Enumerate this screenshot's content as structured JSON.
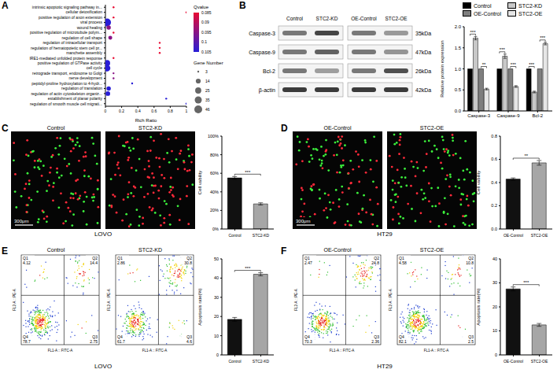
{
  "chart_data": [
    {
      "panel": "A",
      "type": "scatter",
      "x_label": "Rich Ratio",
      "categories": [
        "intrinsic apoptotic signaling pathway in...",
        "cellular detoxification",
        "positive regulation of axon extension",
        "viral process",
        "wound healing",
        "positive regulation of microtubule polym...",
        "regulation of cell shape",
        "regulation of intracellular transport",
        "regulation of hematopoietic stem cell pr...",
        "manchette assembly",
        "IRE1-mediated unfolded protein response",
        "positive regulation of GTPase activity",
        "cell cycle",
        "retrograde transport, endosome to Golgi",
        "nerve development",
        "peptidyl-proline hydroxylation to 4-hydr...",
        "regulation of translation",
        "regulation of actin cytoskeleton organiz...",
        "establishment of planar polarity",
        "regulation of smooth muscle cell migrati..."
      ],
      "x": [
        0.1,
        1,
        0.1,
        0.02,
        0.04,
        0.1,
        0.06,
        0.67,
        0.67,
        0.67,
        0.1,
        0.02,
        0.02,
        0.1,
        0.1,
        0.33,
        0.04,
        0.03,
        0.75,
        1
      ],
      "qvalue": [
        0.085,
        0.085,
        0.085,
        0.105,
        0.095,
        0.085,
        0.095,
        0.085,
        0.085,
        0.085,
        0.085,
        0.105,
        0.105,
        0.095,
        0.095,
        0.105,
        0.105,
        0.105,
        0.105,
        0.105
      ],
      "gene_number": [
        3,
        3,
        3,
        46,
        10,
        3,
        8,
        3,
        3,
        3,
        3,
        25,
        30,
        3,
        3,
        3,
        10,
        12,
        3,
        3
      ],
      "xlim": [
        0,
        1
      ],
      "xticks": [
        0,
        0.2,
        0.4,
        0.6,
        0.8,
        1
      ],
      "color_bar": {
        "title": "Qvalue",
        "range": [
          0.085,
          0.105
        ],
        "ticks": [
          0.085,
          0.09,
          0.095,
          0.1,
          0.105
        ]
      },
      "size_legend": {
        "title": "Gene Number",
        "values": [
          3,
          14,
          25,
          35,
          46
        ]
      }
    },
    {
      "panel": "B",
      "type": "bar",
      "y_label": "Relative protein expression",
      "categories": [
        "Caspase-3",
        "Caspase-9",
        "Bcl-2"
      ],
      "series": [
        {
          "name": "Control",
          "color": "#000000",
          "values": [
            1,
            1,
            1
          ],
          "errors": [
            0,
            0,
            0
          ]
        },
        {
          "name": "STC2-KD",
          "color": "#c8c8c8",
          "values": [
            1.73,
            1.3,
            0.45
          ],
          "errors": [
            0.04,
            0.05,
            0.02
          ]
        },
        {
          "name": "OE-Control",
          "color": "#7f7f7f",
          "values": [
            1,
            1,
            1
          ],
          "errors": [
            0,
            0,
            0
          ]
        },
        {
          "name": "STC2-OE",
          "color": "#e6e6e6",
          "values": [
            0.52,
            0.58,
            1.6
          ],
          "errors": [
            0.02,
            0.02,
            0.03
          ]
        }
      ],
      "ylim": [
        0,
        2
      ],
      "yticks": [
        {
          "value": 0,
          "label": "0.0"
        },
        0.5,
        {
          "value": 1,
          "label": "1.0"
        },
        1.5,
        {
          "value": 2,
          "label": "2.0"
        }
      ],
      "legend": "top",
      "significance": [
        {
          "category": "Caspase-3",
          "pair": [
            "Control",
            "STC2-KD"
          ],
          "label": "***"
        },
        {
          "category": "Caspase-3",
          "pair": [
            "OE-Control",
            "STC2-OE"
          ],
          "label": "**"
        },
        {
          "category": "Caspase-9",
          "pair": [
            "Control",
            "STC2-KD"
          ],
          "label": "***"
        },
        {
          "category": "Caspase-9",
          "pair": [
            "OE-Control",
            "STC2-OE"
          ],
          "label": "***"
        },
        {
          "category": "Bcl-2",
          "pair": [
            "Control",
            "STC2-KD"
          ],
          "label": "***"
        },
        {
          "category": "Bcl-2",
          "pair": [
            "OE-Control",
            "STC2-OE"
          ],
          "label": "***"
        }
      ],
      "blot": {
        "groups": [
          [
            "Control",
            "STC2-KD"
          ],
          [
            "OE-Control",
            "STC2-OE"
          ]
        ],
        "proteins": [
          {
            "name": "Caspase-3",
            "size": "35kDa"
          },
          {
            "name": "Caspase-9",
            "size": "47kDa"
          },
          {
            "name": "Bcl-2",
            "size": "26kDa"
          },
          {
            "name": "β-actin",
            "size": "42kDa"
          }
        ]
      }
    },
    {
      "panel": "C",
      "type": "bar",
      "y_label": "Cell vability",
      "categories": [
        "Control",
        "STC2-KD"
      ],
      "values": [
        55,
        27
      ],
      "errors": [
        1.5,
        1.2
      ],
      "colors": [
        "#111111",
        "#a6a6a6"
      ],
      "ylim": [
        0,
        100
      ],
      "yticks": [
        {
          "value": 0,
          "label": "0%"
        },
        {
          "value": 20,
          "label": "20%"
        },
        {
          "value": 40,
          "label": "40%"
        },
        {
          "value": 60,
          "label": "60%"
        },
        {
          "value": 80,
          "label": "80%"
        },
        {
          "value": 100,
          "label": "100%"
        }
      ],
      "significance": [
        {
          "pair": [
            "Control",
            "STC2-KD"
          ],
          "label": "***"
        }
      ],
      "fluorescence": {
        "cell_line": "LOVO",
        "scale_bar": "300μm",
        "images": [
          "Control",
          "STC2-KD"
        ]
      }
    },
    {
      "panel": "D",
      "type": "bar",
      "y_label": "Cell vability",
      "categories": [
        "OE-Control",
        "STC2-OE"
      ],
      "values": [
        0.43,
        0.57
      ],
      "errors": [
        0.01,
        0.02
      ],
      "colors": [
        "#111111",
        "#a6a6a6"
      ],
      "ylim": [
        0,
        0.8
      ],
      "yticks": [
        {
          "value": 0,
          "label": "0.0"
        },
        0.2,
        0.4,
        0.6,
        0.8
      ],
      "significance": [
        {
          "pair": [
            "OE-Control",
            "STC2-OE"
          ],
          "label": "**"
        }
      ],
      "fluorescence": {
        "cell_line": "HT29",
        "scale_bar": "300μm",
        "images": [
          "OE-Control",
          "STC2-OE"
        ]
      }
    },
    {
      "panel": "E",
      "type": "bar",
      "y_label": "Apoptosis rate(%)",
      "categories": [
        "Control",
        "STC2-KD"
      ],
      "values": [
        18.5,
        42
      ],
      "errors": [
        1,
        0.8
      ],
      "colors": [
        "#111111",
        "#a6a6a6"
      ],
      "ylim": [
        0,
        50
      ],
      "yticks": [
        0,
        10,
        20,
        30,
        40,
        50
      ],
      "significance": [
        {
          "pair": [
            "Control",
            "STC2-KD"
          ],
          "label": "***"
        }
      ],
      "flow_cytometry": {
        "cell_line": "LOVO",
        "x_label": "FL1-A :: FITC-A",
        "y_label": "FL2-A :: PE-A",
        "plots": [
          {
            "title": "Control",
            "quadrants": [
              {
                "label": "Q1",
                "value": 4.12
              },
              {
                "label": "Q2",
                "value": 14.4
              },
              {
                "label": "Q3",
                "value": 2.75
              },
              {
                "label": "Q4",
                "value": 78.7
              }
            ]
          },
          {
            "title": "STC2-KD",
            "quadrants": [
              {
                "label": "Q1",
                "value": 2.86
              },
              {
                "label": "Q2",
                "value": 30.8
              },
              {
                "label": "Q3",
                "value": 4.6
              },
              {
                "label": "Q4",
                "value": 61.7
              }
            ]
          }
        ]
      }
    },
    {
      "panel": "F",
      "type": "bar",
      "y_label": "Apoptosis rate(%)",
      "categories": [
        "OE-Control",
        "STC2-OE"
      ],
      "values": [
        27.5,
        12.5
      ],
      "errors": [
        0.8,
        0.6
      ],
      "colors": [
        "#111111",
        "#a6a6a6"
      ],
      "ylim": [
        0,
        40
      ],
      "yticks": [
        0,
        10,
        20,
        30,
        40
      ],
      "significance": [
        {
          "pair": [
            "OE-Control",
            "STC2-OE"
          ],
          "label": "***"
        }
      ],
      "flow_cytometry": {
        "cell_line": "HT29",
        "x_label": "FL1-A :: FITC-A",
        "y_label": "FL2-A :: PE-A",
        "plots": [
          {
            "title": "OE-Control",
            "quadrants": [
              {
                "label": "Q1",
                "value": 2.47
              },
              {
                "label": "Q2",
                "value": 24.8
              },
              {
                "label": "Q3",
                "value": 2.36
              },
              {
                "label": "Q4",
                "value": 70.3
              }
            ]
          },
          {
            "title": "STC2-OE",
            "quadrants": [
              {
                "label": "Q1",
                "value": 4.58
              },
              {
                "label": "Q2",
                "value": 10.8
              },
              {
                "label": "Q3",
                "value": 2.5
              },
              {
                "label": "Q4",
                "value": 82.1
              }
            ]
          }
        ]
      }
    }
  ]
}
